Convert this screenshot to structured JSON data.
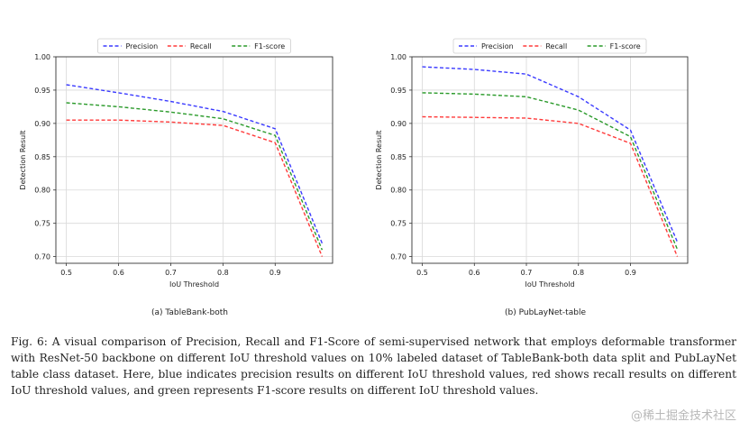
{
  "chart_data": [
    {
      "type": "line",
      "title": "",
      "subcaption": "(a) TableBank-both",
      "xlabel": "IoU Threshold",
      "ylabel": "Detection Result",
      "x": [
        0.5,
        0.6,
        0.7,
        0.8,
        0.9,
        0.99
      ],
      "xticks": [
        "0.5",
        "0.6",
        "0.7",
        "0.8",
        "0.9"
      ],
      "yticks": [
        "0.70",
        "0.75",
        "0.80",
        "0.85",
        "0.90",
        "0.95",
        "1.00"
      ],
      "xlim": [
        0.48,
        1.01
      ],
      "ylim": [
        0.69,
        1.0
      ],
      "grid": true,
      "legend_position": "top-center",
      "series": [
        {
          "name": "Precision",
          "color": "#3a3aff",
          "values": [
            0.958,
            0.946,
            0.933,
            0.918,
            0.892,
            0.72
          ]
        },
        {
          "name": "Recall",
          "color": "#ff3a3a",
          "values": [
            0.905,
            0.905,
            0.902,
            0.897,
            0.871,
            0.7
          ]
        },
        {
          "name": "F1-score",
          "color": "#2a9a2a",
          "values": [
            0.931,
            0.925,
            0.917,
            0.907,
            0.882,
            0.71
          ]
        }
      ]
    },
    {
      "type": "line",
      "title": "",
      "subcaption": "(b) PubLayNet-table",
      "xlabel": "IoU Threshold",
      "ylabel": "Detection Result",
      "x": [
        0.5,
        0.6,
        0.7,
        0.8,
        0.9,
        0.99
      ],
      "xticks": [
        "0.5",
        "0.6",
        "0.7",
        "0.8",
        "0.9"
      ],
      "yticks": [
        "0.70",
        "0.75",
        "0.80",
        "0.85",
        "0.90",
        "0.95",
        "1.00"
      ],
      "xlim": [
        0.48,
        1.01
      ],
      "ylim": [
        0.69,
        1.0
      ],
      "grid": true,
      "legend_position": "top-center",
      "series": [
        {
          "name": "Precision",
          "color": "#3a3aff",
          "values": [
            0.985,
            0.981,
            0.974,
            0.94,
            0.89,
            0.722
          ]
        },
        {
          "name": "Recall",
          "color": "#ff3a3a",
          "values": [
            0.91,
            0.909,
            0.908,
            0.9,
            0.87,
            0.7
          ]
        },
        {
          "name": "F1-score",
          "color": "#2a9a2a",
          "values": [
            0.946,
            0.944,
            0.94,
            0.92,
            0.88,
            0.711
          ]
        }
      ]
    }
  ],
  "caption": "Fig. 6: A visual comparison of Precision, Recall and F1-Score of semi-supervised network that employs deformable transformer with ResNet-50 backbone on different IoU threshold values on 10% labeled dataset of TableBank-both data split and PubLayNet table class dataset. Here, blue indicates precision results on different IoU threshold values, red shows recall results on different IoU threshold values, and green represents F1-score results on different IoU threshold values.",
  "watermark": "@稀土掘金技术社区"
}
